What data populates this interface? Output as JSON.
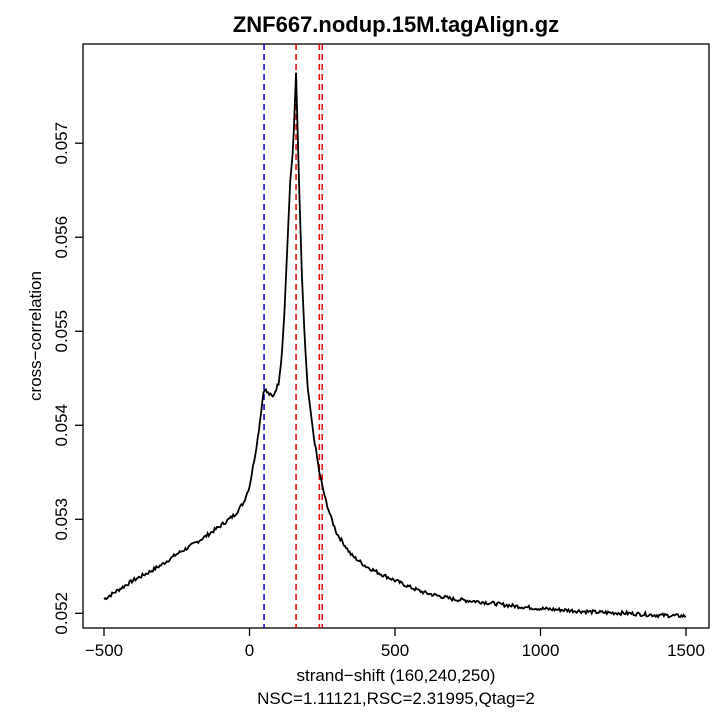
{
  "chart_data": {
    "type": "line",
    "title": "ZNF667.nodup.15M.tagAlign.gz",
    "xlabel": "strand−shift (160,240,250)",
    "subtitle": "NSC=1.11121,RSC=2.31995,Qtag=2",
    "ylabel": "cross−correlation",
    "xlim": [
      -500,
      1500
    ],
    "ylim": [
      0.05195,
      0.0578
    ],
    "x_ticks": [
      -500,
      0,
      500,
      1000,
      1500
    ],
    "x_tick_labels": [
      "−500",
      "0",
      "500",
      "1000",
      "1500"
    ],
    "y_ticks": [
      0.052,
      0.053,
      0.054,
      0.055,
      0.056,
      0.057
    ],
    "y_tick_labels": [
      "0.052",
      "0.053",
      "0.054",
      "0.055",
      "0.056",
      "0.057"
    ],
    "grid": false,
    "series": [
      {
        "color": "#000000",
        "x": [
          -500,
          -450,
          -400,
          -350,
          -300,
          -250,
          -200,
          -150,
          -100,
          -50,
          -20,
          0,
          20,
          30,
          40,
          50,
          60,
          80,
          100,
          110,
          120,
          130,
          140,
          150,
          160,
          170,
          180,
          190,
          200,
          220,
          240,
          260,
          280,
          300,
          350,
          400,
          450,
          500,
          550,
          600,
          700,
          800,
          900,
          1000,
          1100,
          1200,
          1300,
          1400,
          1500
        ],
        "y": [
          0.05215,
          0.05225,
          0.05235,
          0.05243,
          0.05252,
          0.05263,
          0.05272,
          0.05282,
          0.05293,
          0.05305,
          0.05318,
          0.05335,
          0.0537,
          0.0539,
          0.05415,
          0.0544,
          0.05435,
          0.0543,
          0.05445,
          0.0547,
          0.0552,
          0.0559,
          0.0566,
          0.05695,
          0.05775,
          0.0566,
          0.0556,
          0.0549,
          0.0544,
          0.0539,
          0.0535,
          0.05322,
          0.05302,
          0.05285,
          0.05262,
          0.0525,
          0.05242,
          0.05235,
          0.05228,
          0.05222,
          0.05215,
          0.05212,
          0.05208,
          0.05205,
          0.05203,
          0.05201,
          0.052,
          0.05198,
          0.05197
        ]
      }
    ],
    "vlines": [
      {
        "x": 50,
        "color": "#1010c8"
      },
      {
        "x": 160,
        "color": "#e01010"
      },
      {
        "x": 240,
        "color": "#e01010"
      },
      {
        "x": 250,
        "color": "#e01010"
      }
    ]
  }
}
